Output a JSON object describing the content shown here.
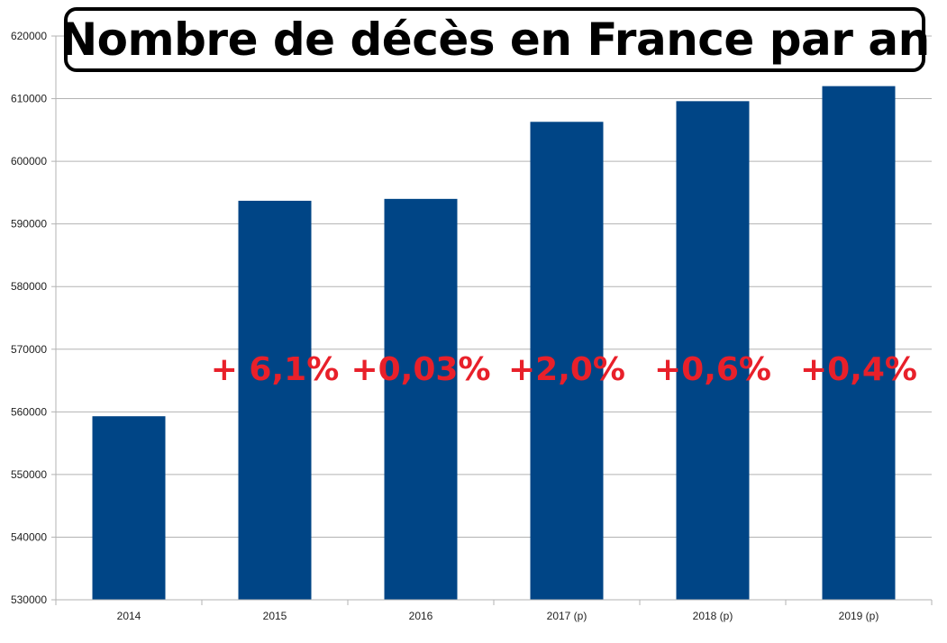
{
  "chart_data": {
    "type": "bar",
    "title": "Nombre de décès en France par an",
    "xlabel": "",
    "ylabel": "",
    "categories": [
      "2014",
      "2015",
      "2016",
      "2017 (p)",
      "2018 (p)",
      "2019 (p)"
    ],
    "values": [
      559300,
      593700,
      594000,
      606300,
      609600,
      612000
    ],
    "ylim": [
      530000,
      620000
    ],
    "yticks": [
      "530000",
      "540000",
      "550000",
      "560000",
      "570000",
      "580000",
      "590000",
      "600000",
      "610000",
      "620000"
    ],
    "annotations": [
      "+ 6,1%",
      "+0,03%",
      "+2,0%",
      "+0,6%",
      "+0,4%"
    ],
    "grid": true,
    "legend": "none",
    "colors": {
      "bar": "#004586",
      "annotation": "#e8202a",
      "grid": "#b3b3b3"
    }
  }
}
